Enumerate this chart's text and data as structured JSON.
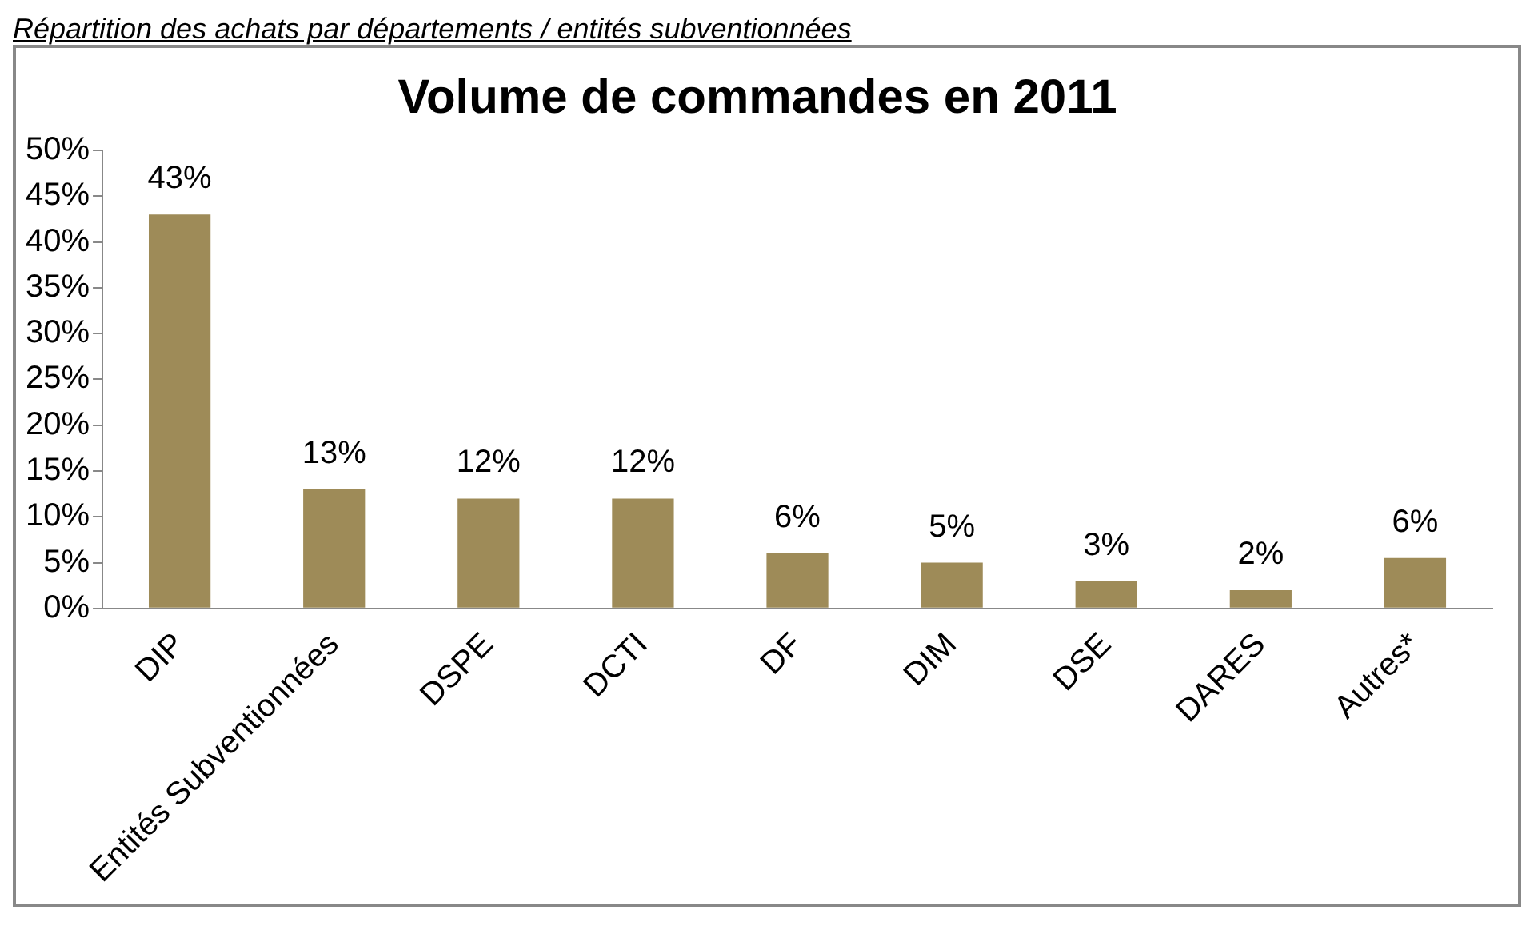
{
  "chart_data": {
    "type": "bar",
    "title": "Volume de commandes en 2011",
    "annotations": [
      "Répartition des achats par départements / entités subventionnées"
    ],
    "categories": [
      "DIP",
      "Entités Subventionnées",
      "DSPE",
      "DCTI",
      "DF",
      "DIM",
      "DSE",
      "DARES",
      "Autres*"
    ],
    "values": [
      43,
      13,
      12,
      12,
      6,
      5,
      3,
      2,
      5.5
    ],
    "value_labels": [
      "43%",
      "13%",
      "12%",
      "12%",
      "6%",
      "5%",
      "3%",
      "2%",
      "6%"
    ],
    "color": "#9e8b58",
    "ylim": [
      0,
      50
    ],
    "yticks": [
      {
        "value": 0,
        "label": "0%"
      },
      {
        "value": 5,
        "label": "5%"
      },
      {
        "value": 10,
        "label": "10%"
      },
      {
        "value": 15,
        "label": "15%"
      },
      {
        "value": 20,
        "label": "20%"
      },
      {
        "value": 25,
        "label": "25%"
      },
      {
        "value": 30,
        "label": "30%"
      },
      {
        "value": 35,
        "label": "35%"
      },
      {
        "value": 40,
        "label": "40%"
      },
      {
        "value": 45,
        "label": "45%"
      },
      {
        "value": 50,
        "label": "50%"
      }
    ],
    "grid": false,
    "legend": false
  }
}
